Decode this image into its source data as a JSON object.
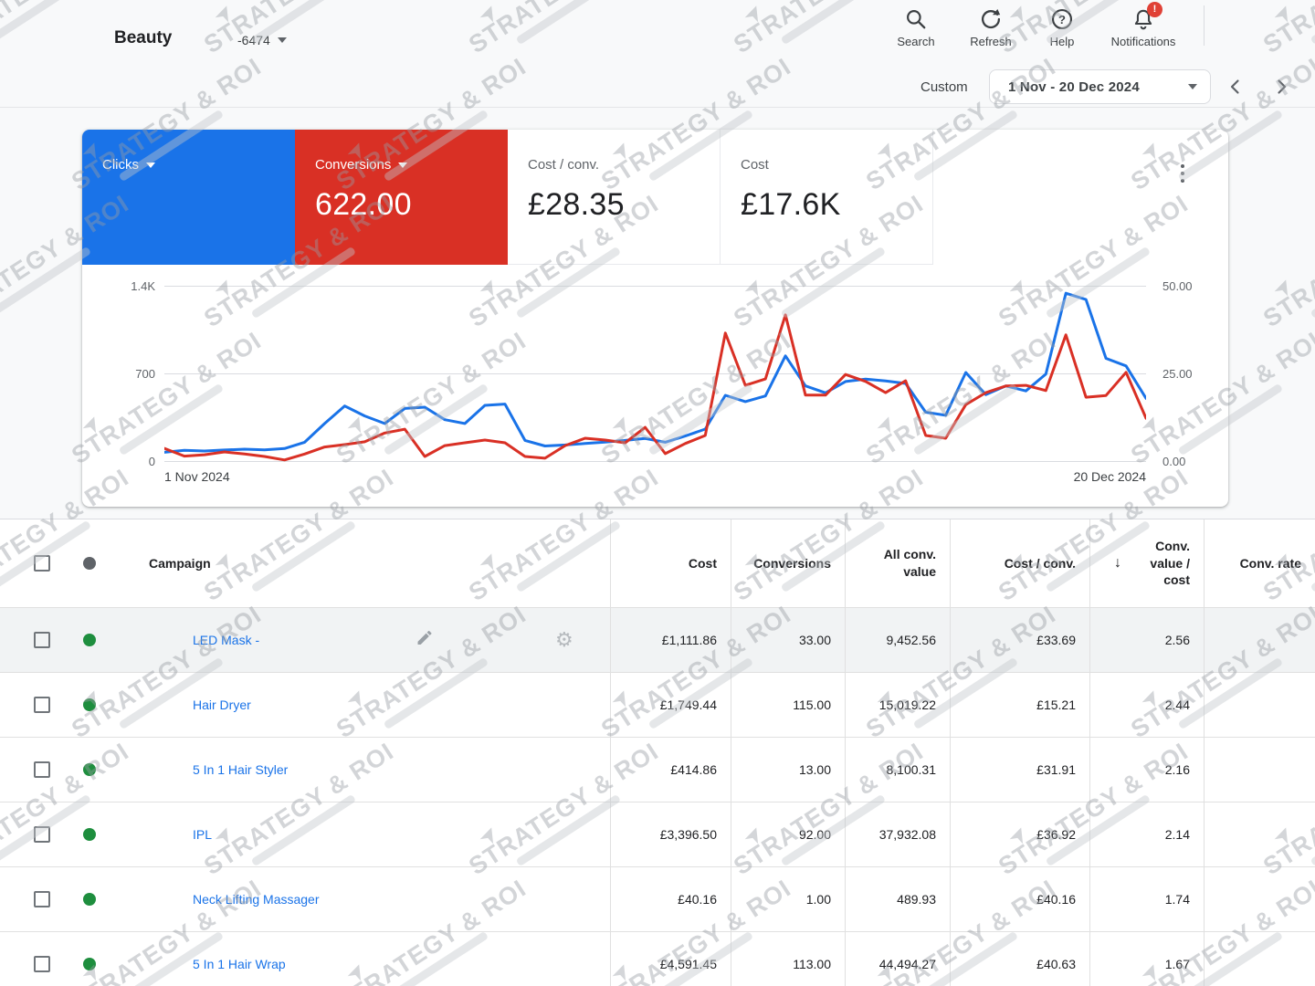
{
  "app": {
    "account_name": "Beauty",
    "account_id": "-6474",
    "nav": {
      "search": "Search",
      "refresh": "Refresh",
      "help": "Help",
      "notifications": "Notifications",
      "badge": "!"
    },
    "date_range": {
      "mode_label": "Custom",
      "value": "1 Nov - 20 Dec 2024"
    }
  },
  "scorecards": [
    {
      "label": "Clicks",
      "value": "",
      "selected": true,
      "color": "#1a73e8"
    },
    {
      "label": "Conversions",
      "value": "622.00",
      "selected": true,
      "color": "#d93025"
    },
    {
      "label": "Cost / conv.",
      "value": "£28.35",
      "selected": false
    },
    {
      "label": "Cost",
      "value": "£17.6K",
      "selected": false
    }
  ],
  "chart_data": {
    "type": "line",
    "x_start_label": "1 Nov 2024",
    "x_end_label": "20 Dec 2024",
    "left_axis": {
      "ticks": [
        "1.4K",
        "700",
        "0"
      ],
      "range": [
        0,
        1400
      ]
    },
    "right_axis": {
      "ticks": [
        "50.00",
        "25.00",
        "0.00"
      ],
      "range": [
        0,
        50
      ]
    },
    "grid": true,
    "legend": "none",
    "series": [
      {
        "name": "Clicks",
        "axis": "left",
        "color": "#1a73e8",
        "values": [
          70,
          85,
          80,
          88,
          95,
          90,
          100,
          150,
          300,
          440,
          360,
          300,
          420,
          430,
          330,
          300,
          445,
          455,
          165,
          120,
          128,
          140,
          152,
          165,
          180,
          150,
          200,
          255,
          525,
          475,
          520,
          840,
          600,
          545,
          635,
          655,
          640,
          620,
          390,
          365,
          707,
          530,
          600,
          560,
          695,
          1340,
          1290,
          820,
          760,
          500
        ]
      },
      {
        "name": "Conversions",
        "axis": "right",
        "color": "#d93025",
        "values": [
          3.6,
          1.4,
          1.8,
          2.6,
          2.0,
          1.3,
          0.3,
          2.0,
          4.0,
          4.7,
          5.5,
          8.0,
          9.1,
          1.3,
          4.4,
          5.2,
          6.0,
          5.2,
          1.3,
          0.8,
          4.4,
          6.5,
          6.0,
          5.2,
          9.6,
          2.1,
          5.0,
          7.3,
          36.5,
          21.6,
          23.4,
          41.7,
          18.8,
          18.8,
          24.7,
          22.7,
          19.5,
          22.9,
          7.3,
          6.5,
          16.1,
          19.5,
          21.4,
          21.6,
          20.1,
          36.0,
          18.2,
          18.7,
          25.3,
          12.2
        ]
      }
    ]
  },
  "table": {
    "status_color_enabled": "#1e8e3e",
    "status_color_header": "#5f6368",
    "columns": [
      {
        "key": "campaign",
        "label": "Campaign",
        "align": "left"
      },
      {
        "key": "cost",
        "label": "Cost",
        "align": "right"
      },
      {
        "key": "conversions",
        "label": "Conversions",
        "align": "right"
      },
      {
        "key": "all_conv_value",
        "label": "All conv. value",
        "align": "right"
      },
      {
        "key": "cost_per_conv",
        "label": "Cost / conv.",
        "align": "right"
      },
      {
        "key": "conv_value_per_cost",
        "label": "Conv. value / cost",
        "align": "right",
        "sorted": "desc"
      },
      {
        "key": "conv_rate",
        "label": "Conv. rate",
        "align": "right"
      }
    ],
    "rows": [
      {
        "campaign": "LED Mask -",
        "cost": "£1,111.86",
        "conversions": "33.00",
        "all_conv_value": "9,452.56",
        "cost_per_conv": "£33.69",
        "conv_value_per_cost": "2.56",
        "conv_rate": "",
        "hover": true
      },
      {
        "campaign": "Hair Dryer",
        "cost": "£1,749.44",
        "conversions": "115.00",
        "all_conv_value": "15,019.22",
        "cost_per_conv": "£15.21",
        "conv_value_per_cost": "2.44",
        "conv_rate": ""
      },
      {
        "campaign": "5 In 1 Hair Styler",
        "cost": "£414.86",
        "conversions": "13.00",
        "all_conv_value": "8,100.31",
        "cost_per_conv": "£31.91",
        "conv_value_per_cost": "2.16",
        "conv_rate": ""
      },
      {
        "campaign": "IPL",
        "cost": "£3,396.50",
        "conversions": "92.00",
        "all_conv_value": "37,932.08",
        "cost_per_conv": "£36.92",
        "conv_value_per_cost": "2.14",
        "conv_rate": ""
      },
      {
        "campaign": "Neck Lifting Massager",
        "cost": "£40.16",
        "conversions": "1.00",
        "all_conv_value": "489.93",
        "cost_per_conv": "£40.16",
        "conv_value_per_cost": "1.74",
        "conv_rate": ""
      },
      {
        "campaign": "5 In 1 Hair Wrap",
        "cost": "£4,591.45",
        "conversions": "113.00",
        "all_conv_value": "44,494.27",
        "cost_per_conv": "£40.63",
        "conv_value_per_cost": "1.67",
        "conv_rate": ""
      }
    ]
  },
  "watermark": {
    "text": "STRATEGY & ROI"
  }
}
